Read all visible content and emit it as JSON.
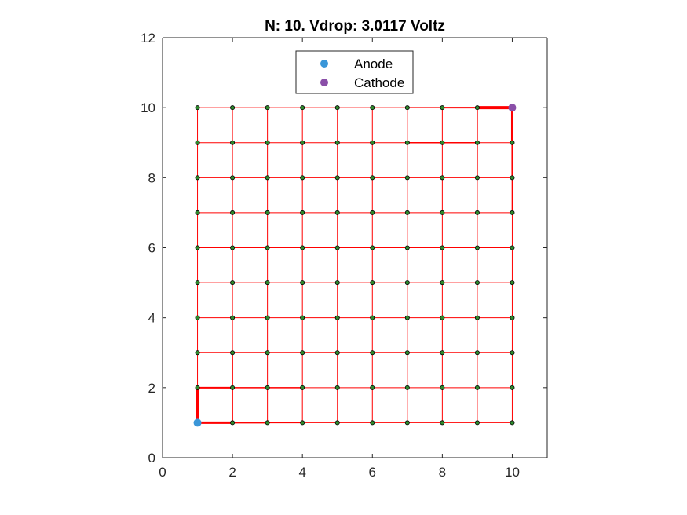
{
  "chart_data": {
    "type": "scatter",
    "title": "N: 10. Vdrop: 3.0117 Voltz",
    "xlabel": "",
    "ylabel": "",
    "xlim": [
      0,
      11
    ],
    "ylim": [
      0,
      12
    ],
    "xticks": [
      0,
      2,
      4,
      6,
      8,
      10
    ],
    "yticks": [
      0,
      2,
      4,
      6,
      8,
      10,
      12
    ],
    "grid": false,
    "legend_position": "top-center",
    "grid_size": 10,
    "node_color": "#2e8b2e",
    "edge_color": "#ff0000",
    "series": [
      {
        "name": "Anode",
        "color": "#3a96d8",
        "x": [
          1
        ],
        "y": [
          1
        ]
      },
      {
        "name": "Cathode",
        "color": "#8a4fa8",
        "x": [
          10
        ],
        "y": [
          10
        ]
      }
    ],
    "heavy_edges": [
      {
        "from": [
          1,
          1
        ],
        "to": [
          1,
          2
        ],
        "weight": 4
      },
      {
        "from": [
          1,
          1
        ],
        "to": [
          2,
          1
        ],
        "weight": 3
      },
      {
        "from": [
          2,
          1
        ],
        "to": [
          3,
          1
        ],
        "weight": 2
      },
      {
        "from": [
          3,
          1
        ],
        "to": [
          4,
          1
        ],
        "weight": 1.5
      },
      {
        "from": [
          1,
          2
        ],
        "to": [
          2,
          2
        ],
        "weight": 2
      },
      {
        "from": [
          2,
          1
        ],
        "to": [
          2,
          2
        ],
        "weight": 1.5
      },
      {
        "from": [
          2,
          2
        ],
        "to": [
          2,
          3
        ],
        "weight": 1.5
      },
      {
        "from": [
          2,
          2
        ],
        "to": [
          3,
          2
        ],
        "weight": 1.5
      },
      {
        "from": [
          3,
          2
        ],
        "to": [
          4,
          2
        ],
        "weight": 1.5
      },
      {
        "from": [
          10,
          10
        ],
        "to": [
          9,
          10
        ],
        "weight": 4
      },
      {
        "from": [
          10,
          10
        ],
        "to": [
          10,
          9
        ],
        "weight": 3
      },
      {
        "from": [
          10,
          9
        ],
        "to": [
          10,
          8
        ],
        "weight": 2
      },
      {
        "from": [
          10,
          8
        ],
        "to": [
          10,
          7
        ],
        "weight": 1.5
      },
      {
        "from": [
          9,
          10
        ],
        "to": [
          8,
          10
        ],
        "weight": 2
      },
      {
        "from": [
          9,
          10
        ],
        "to": [
          9,
          9
        ],
        "weight": 1.5
      },
      {
        "from": [
          9,
          9
        ],
        "to": [
          9,
          8
        ],
        "weight": 1.5
      },
      {
        "from": [
          9,
          9
        ],
        "to": [
          8,
          9
        ],
        "weight": 1.5
      },
      {
        "from": [
          8,
          9
        ],
        "to": [
          7,
          9
        ],
        "weight": 1.5
      },
      {
        "from": [
          8,
          10
        ],
        "to": [
          7,
          10
        ],
        "weight": 1.5
      }
    ]
  }
}
